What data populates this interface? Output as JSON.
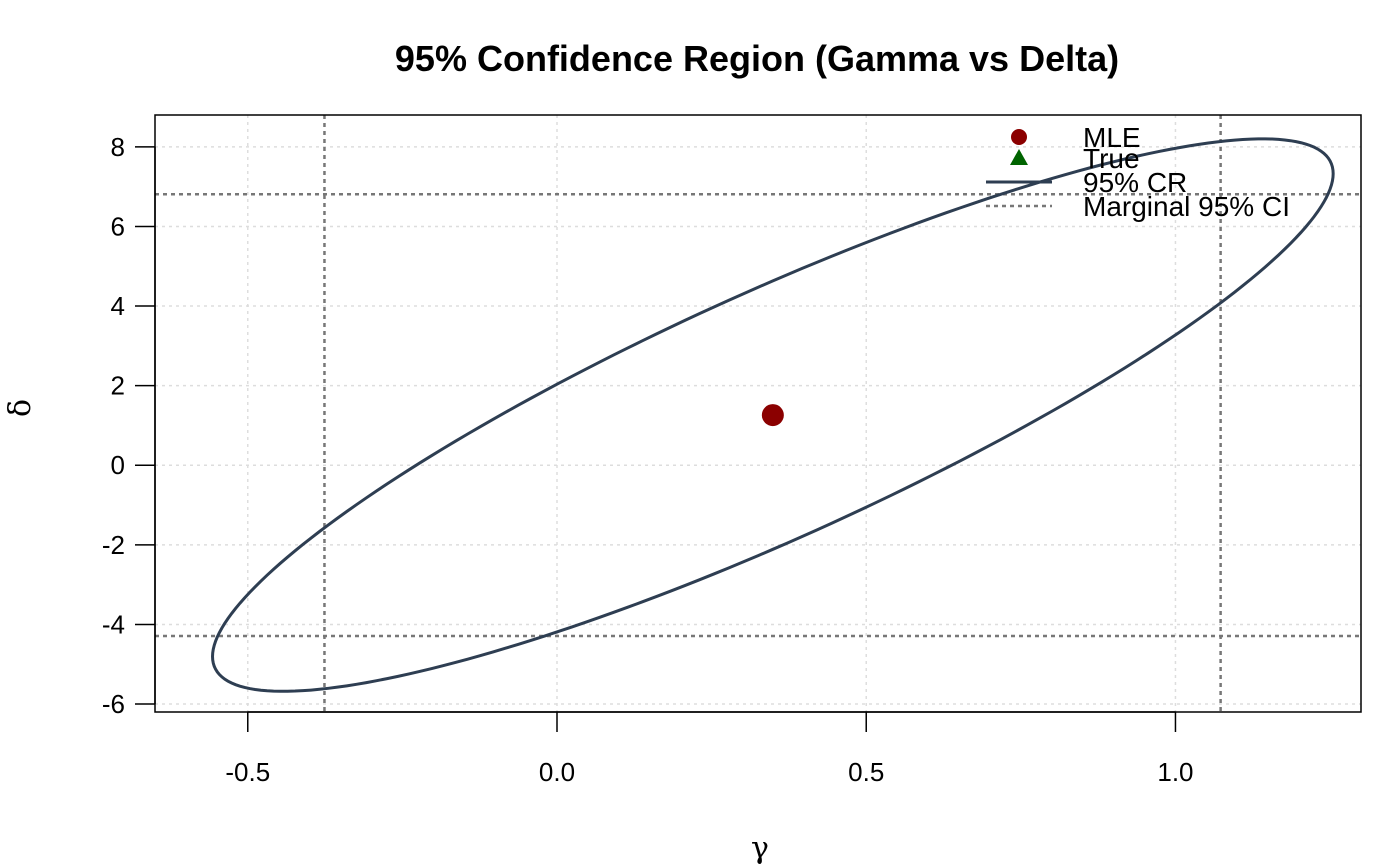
{
  "chart_data": {
    "type": "scatter",
    "title": "95% Confidence Region (Gamma vs Delta)",
    "xlabel": "γ",
    "ylabel": "δ",
    "xlim": [
      -0.65,
      1.3
    ],
    "ylim": [
      -6.2,
      8.8
    ],
    "x_ticks": [
      -0.5,
      0.0,
      0.5,
      1.0
    ],
    "x_tick_labels": [
      "-0.5",
      "0.0",
      "0.5",
      "1.0"
    ],
    "y_ticks": [
      -6,
      -4,
      -2,
      0,
      2,
      4,
      6,
      8
    ],
    "y_tick_labels": [
      "-6",
      "-4",
      "-2",
      "0",
      "2",
      "4",
      "6",
      "8"
    ],
    "grid": true,
    "legend_position": "top-right",
    "mle": {
      "x": 0.349,
      "y": 1.26
    },
    "confidence_region": {
      "label": "95% CR",
      "center": [
        0.349,
        1.26
      ],
      "gamma_half_width": 0.906,
      "delta_half_height": 6.94,
      "correlation": 0.874,
      "color": "#2e3e52"
    },
    "marginal_ci": {
      "gamma": [
        -0.376,
        1.073
      ],
      "delta": [
        -4.29,
        6.81
      ],
      "color": "#777777"
    },
    "legend": [
      {
        "label": "MLE",
        "symbol": "circle",
        "color": "#8b0000"
      },
      {
        "label": "True",
        "symbol": "triangle",
        "color": "#006400"
      },
      {
        "label": "95% CR",
        "symbol": "line",
        "color": "#2e3e52"
      },
      {
        "label": "Marginal 95% CI",
        "symbol": "dashed-line",
        "color": "#777777"
      }
    ],
    "colors": {
      "mle": "#8b0000",
      "true": "#006400",
      "grid": "#dddddd"
    }
  }
}
